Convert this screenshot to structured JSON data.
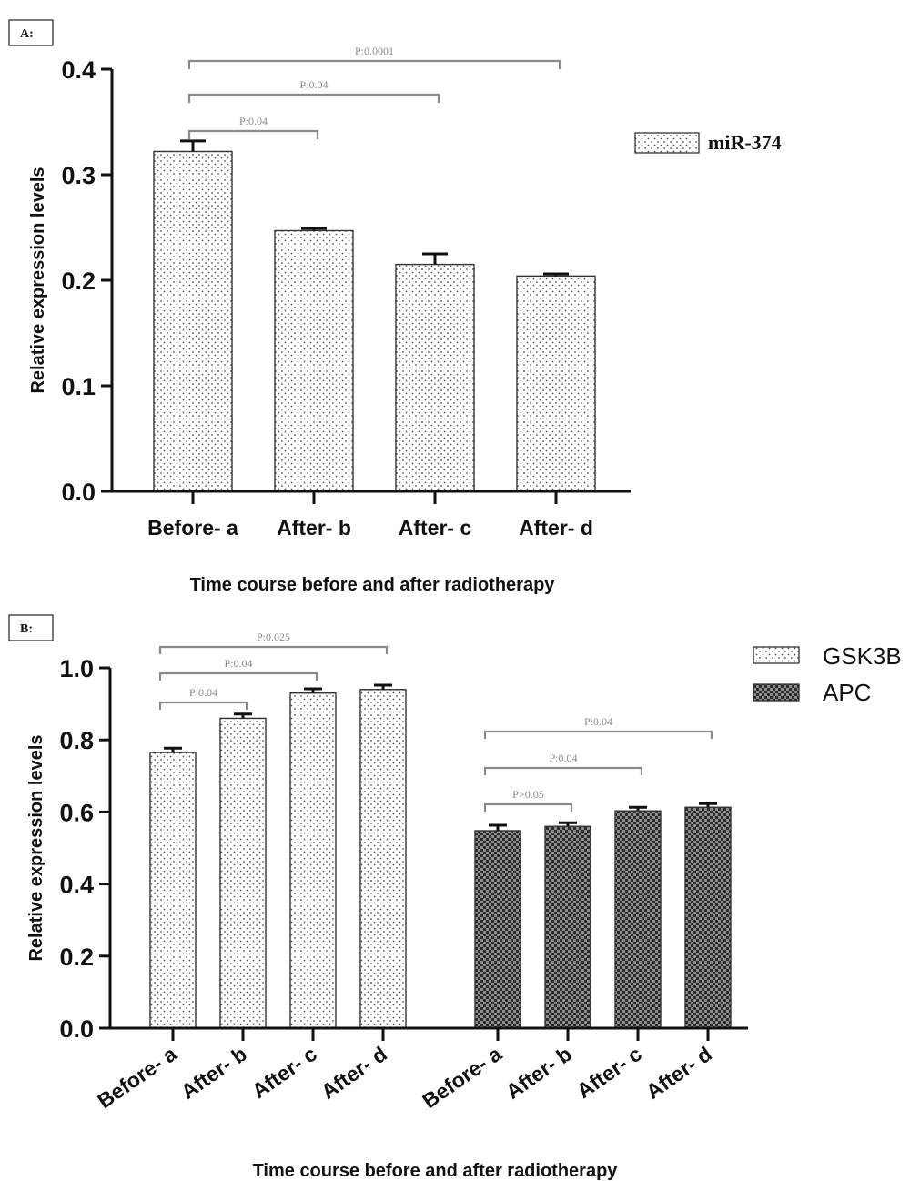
{
  "chart_data": [
    {
      "type": "bar",
      "panel_label": "A:",
      "title": "",
      "xlabel": "Time course before and after radiotherapy",
      "ylabel": "Relative expression levels",
      "ylim": [
        0,
        0.4
      ],
      "yticks": [
        "0.0",
        "0.1",
        "0.2",
        "0.3",
        "0.4"
      ],
      "categories": [
        "Before- a",
        "After- b",
        "After- c",
        "After- d"
      ],
      "series": [
        {
          "name": "miR-374",
          "values": [
            0.322,
            0.247,
            0.215,
            0.204
          ],
          "errors": [
            0.01,
            0.002,
            0.01,
            0.002
          ],
          "pattern": "dots"
        }
      ],
      "comparisons": [
        {
          "from": 0,
          "to": 1,
          "label": "P:0.04"
        },
        {
          "from": 0,
          "to": 2,
          "label": "P:0.04"
        },
        {
          "from": 0,
          "to": 3,
          "label": "P:0.0001"
        }
      ],
      "legend_position": "right"
    },
    {
      "type": "bar",
      "panel_label": "B:",
      "title": "",
      "xlabel": "Time course before and after radiotherapy",
      "ylabel": "Relative expression levels",
      "ylim": [
        0,
        1.0
      ],
      "yticks": [
        "0.0",
        "0.2",
        "0.4",
        "0.6",
        "0.8",
        "1.0"
      ],
      "categories": [
        "Before- a",
        "After- b",
        "After- c",
        "After- d"
      ],
      "series": [
        {
          "name": "GSK3B",
          "values": [
            0.765,
            0.86,
            0.93,
            0.94
          ],
          "errors": [
            0.012,
            0.012,
            0.012,
            0.012
          ],
          "pattern": "dots"
        },
        {
          "name": "APC",
          "values": [
            0.548,
            0.56,
            0.603,
            0.613
          ],
          "errors": [
            0.015,
            0.01,
            0.01,
            0.01
          ],
          "pattern": "checker"
        }
      ],
      "comparisons": [
        {
          "series": 0,
          "from": 0,
          "to": 1,
          "label": "P:0.04"
        },
        {
          "series": 0,
          "from": 0,
          "to": 2,
          "label": "P:0.04"
        },
        {
          "series": 0,
          "from": 0,
          "to": 3,
          "label": "P:0.025"
        },
        {
          "series": 1,
          "from": 0,
          "to": 1,
          "label": "P>0.05"
        },
        {
          "series": 1,
          "from": 0,
          "to": 2,
          "label": "P:0.04"
        },
        {
          "series": 1,
          "from": 0,
          "to": 3,
          "label": "P:0.04"
        }
      ],
      "legend_position": "top-right"
    }
  ]
}
